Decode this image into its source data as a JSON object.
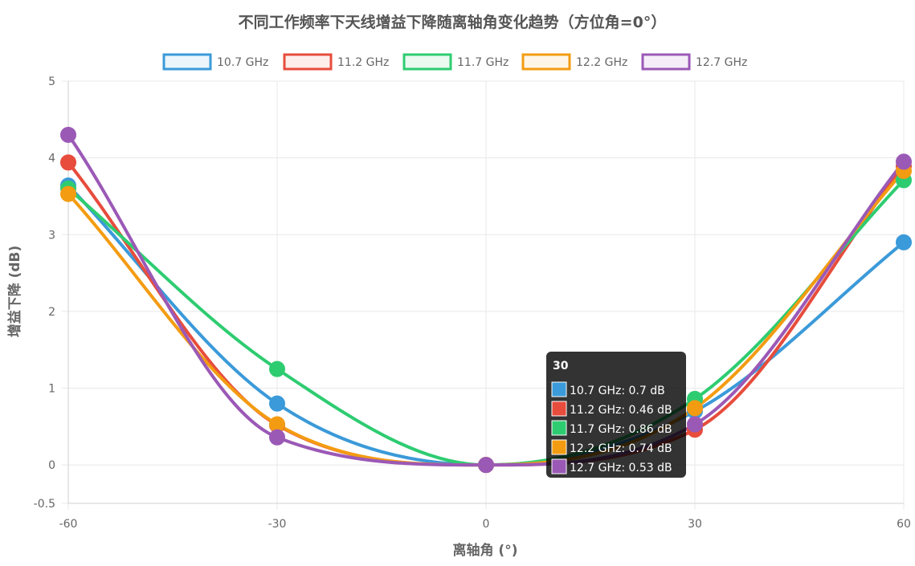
{
  "chart_data": {
    "type": "line",
    "title": "不同工作频率下天线增益下降随离轴角变化趋势（方位角=0°）",
    "xlabel": "离轴角 (°)",
    "ylabel": "增益下降 (dB)",
    "x": [
      -60,
      -30,
      0,
      30,
      60
    ],
    "x_tick_labels": [
      "-60",
      "-30",
      "0",
      "30",
      "60"
    ],
    "ylim": [
      -0.5,
      5
    ],
    "y_tick_labels": [
      "-0.5",
      "0",
      "1",
      "2",
      "3",
      "4",
      "5"
    ],
    "grid": true,
    "legend_position": "top",
    "series": [
      {
        "name": "10.7 GHz",
        "color": "#3b9ad9",
        "values": [
          3.64,
          0.8,
          0.0,
          0.7,
          2.9
        ]
      },
      {
        "name": "11.2 GHz",
        "color": "#e74c3c",
        "values": [
          3.94,
          0.52,
          0.0,
          0.46,
          3.89
        ]
      },
      {
        "name": "11.7 GHz",
        "color": "#2ecc71",
        "values": [
          3.6,
          1.25,
          0.0,
          0.86,
          3.71
        ]
      },
      {
        "name": "12.2 GHz",
        "color": "#f39c12",
        "values": [
          3.53,
          0.53,
          0.0,
          0.74,
          3.83
        ]
      },
      {
        "name": "12.7 GHz",
        "color": "#9b59b6",
        "values": [
          4.3,
          0.36,
          0.0,
          0.53,
          3.95
        ]
      }
    ],
    "tooltip": {
      "title": "30",
      "items": [
        "10.7 GHz: 0.7 dB",
        "11.2 GHz: 0.46 dB",
        "11.7 GHz: 0.86 dB",
        "12.2 GHz: 0.74 dB",
        "12.7 GHz: 0.53 dB"
      ]
    }
  }
}
